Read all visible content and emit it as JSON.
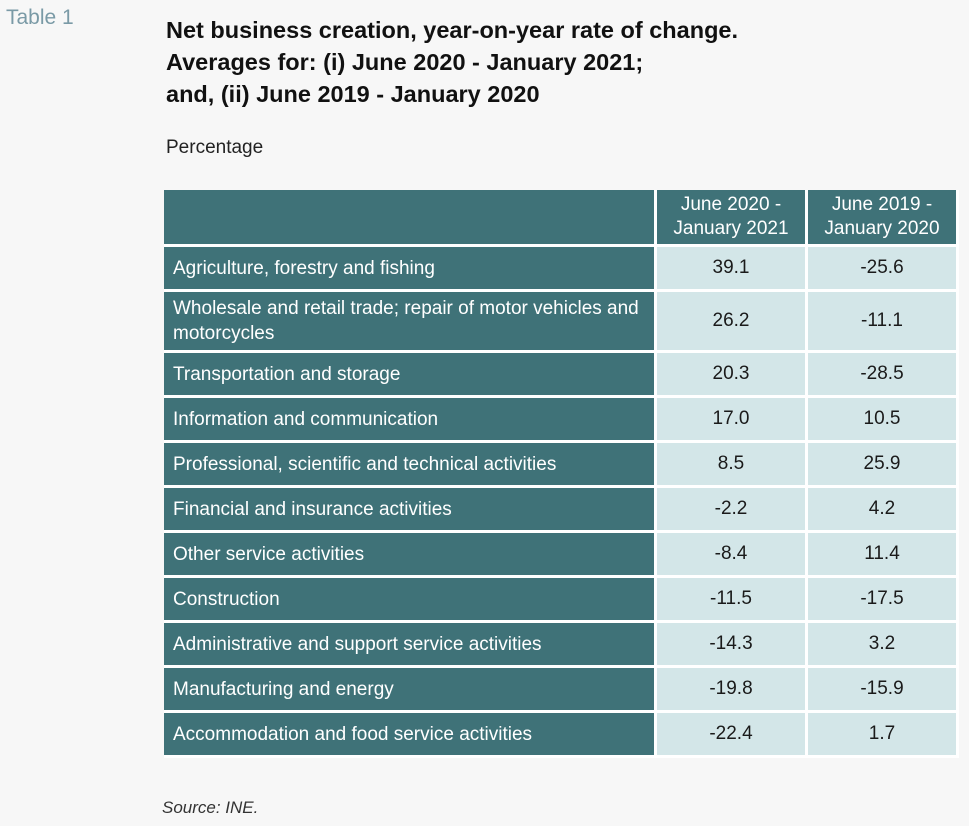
{
  "table_label": "Table 1",
  "title": {
    "line1": "Net business creation, year-on-year rate of change.",
    "line2": "Averages for: (i) June 2020 - January 2021;",
    "line3": "and, (ii) June 2019 - January 2020"
  },
  "unit": "Percentage",
  "table": {
    "corner": "",
    "columns": [
      {
        "line1": "June 2020 -",
        "line2": "January 2021"
      },
      {
        "line1": "June 2019 -",
        "line2": "January 2020"
      }
    ],
    "rows": [
      {
        "label": "Agriculture, forestry and fishing",
        "v1": "39.1",
        "v2": "-25.6"
      },
      {
        "label": "Wholesale and retail trade; repair of motor vehicles and motorcycles",
        "v1": "26.2",
        "v2": "-11.1"
      },
      {
        "label": "Transportation and storage",
        "v1": "20.3",
        "v2": "-28.5"
      },
      {
        "label": "Information and communication",
        "v1": "17.0",
        "v2": "10.5"
      },
      {
        "label": "Professional, scientific and technical activities",
        "v1": "8.5",
        "v2": "25.9"
      },
      {
        "label": "Financial and insurance activities",
        "v1": "-2.2",
        "v2": "4.2"
      },
      {
        "label": "Other service activities",
        "v1": "-8.4",
        "v2": "11.4"
      },
      {
        "label": "Construction",
        "v1": "-11.5",
        "v2": "-17.5"
      },
      {
        "label": "Administrative and support service activities",
        "v1": "-14.3",
        "v2": "3.2"
      },
      {
        "label": "Manufacturing and energy",
        "v1": "-19.8",
        "v2": "-15.9"
      },
      {
        "label": "Accommodation and food service activities",
        "v1": "-22.4",
        "v2": "1.7"
      }
    ]
  },
  "source": "Source: INE.",
  "colors": {
    "header_bg": "#3f7278",
    "cell_bg": "#d3e6e8",
    "label_color": "#7a9aa6"
  }
}
